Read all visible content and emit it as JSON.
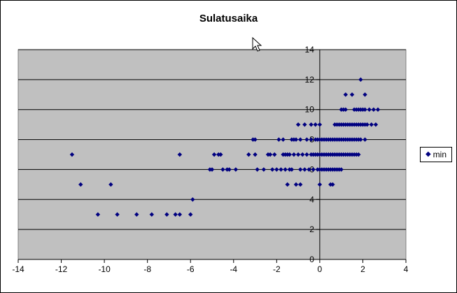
{
  "chart_data": {
    "type": "scatter",
    "title": "Sulatusaika",
    "xlabel": "",
    "ylabel": "",
    "xlim": [
      -14,
      4
    ],
    "ylim": [
      0,
      14
    ],
    "x_ticks": [
      -14,
      -12,
      -10,
      -8,
      -6,
      -4,
      -2,
      0,
      2,
      4
    ],
    "y_ticks": [
      0,
      2,
      4,
      6,
      8,
      10,
      12,
      14
    ],
    "grid": "horizontal",
    "legend_position": "right",
    "plot_background": "#C0C0C0",
    "marker": "diamond",
    "marker_color": "#000080",
    "series": [
      {
        "name": "min",
        "points": [
          [
            -11.5,
            7
          ],
          [
            -11.1,
            5
          ],
          [
            -10.3,
            3
          ],
          [
            -9.7,
            5
          ],
          [
            -9.4,
            3
          ],
          [
            -8.5,
            3
          ],
          [
            -7.8,
            3
          ],
          [
            -7.1,
            3
          ],
          [
            -6.7,
            3
          ],
          [
            -6.5,
            3
          ],
          [
            -6.5,
            7
          ],
          [
            -6.0,
            3
          ],
          [
            -5.9,
            4
          ],
          [
            -5.1,
            6
          ],
          [
            -5.0,
            6
          ],
          [
            -4.9,
            7
          ],
          [
            -4.7,
            7
          ],
          [
            -4.6,
            7
          ],
          [
            -4.5,
            6
          ],
          [
            -4.3,
            6
          ],
          [
            -4.2,
            6
          ],
          [
            -3.9,
            6
          ],
          [
            -3.3,
            7
          ],
          [
            -3.1,
            8
          ],
          [
            -3.0,
            8
          ],
          [
            -3.0,
            7
          ],
          [
            -2.9,
            6
          ],
          [
            -2.6,
            6
          ],
          [
            -2.4,
            7
          ],
          [
            -2.3,
            7
          ],
          [
            -2.2,
            6
          ],
          [
            -2.1,
            7
          ],
          [
            -2.0,
            6
          ],
          [
            -1.9,
            8
          ],
          [
            -1.8,
            6
          ],
          [
            -1.7,
            7
          ],
          [
            -1.7,
            8
          ],
          [
            -1.6,
            7
          ],
          [
            -1.6,
            6
          ],
          [
            -1.5,
            5
          ],
          [
            -1.5,
            7
          ],
          [
            -1.4,
            6
          ],
          [
            -1.4,
            7
          ],
          [
            -1.3,
            8
          ],
          [
            -1.3,
            6
          ],
          [
            -1.2,
            7
          ],
          [
            -1.2,
            8
          ],
          [
            -1.1,
            5
          ],
          [
            -1.1,
            8
          ],
          [
            -1.0,
            7
          ],
          [
            -1.0,
            9
          ],
          [
            -0.9,
            6
          ],
          [
            -0.9,
            8
          ],
          [
            -0.9,
            5
          ],
          [
            -0.8,
            7
          ],
          [
            -0.7,
            6
          ],
          [
            -0.7,
            9
          ],
          [
            -0.6,
            7
          ],
          [
            -0.6,
            8
          ],
          [
            -0.5,
            6
          ],
          [
            -0.4,
            7
          ],
          [
            -0.4,
            8
          ],
          [
            -0.4,
            9
          ],
          [
            -0.3,
            6
          ],
          [
            -0.3,
            7
          ],
          [
            -0.2,
            7
          ],
          [
            -0.2,
            8
          ],
          [
            -0.2,
            9
          ],
          [
            -0.1,
            6
          ],
          [
            -0.1,
            7
          ],
          [
            -0.1,
            8
          ],
          [
            0.0,
            6
          ],
          [
            0.0,
            7
          ],
          [
            0.0,
            8
          ],
          [
            0.0,
            9
          ],
          [
            0.0,
            5
          ],
          [
            0.1,
            6
          ],
          [
            0.1,
            7
          ],
          [
            0.1,
            8
          ],
          [
            0.2,
            6
          ],
          [
            0.2,
            7
          ],
          [
            0.2,
            8
          ],
          [
            0.3,
            6
          ],
          [
            0.3,
            7
          ],
          [
            0.3,
            8
          ],
          [
            0.4,
            6
          ],
          [
            0.4,
            7
          ],
          [
            0.4,
            8
          ],
          [
            0.5,
            7
          ],
          [
            0.5,
            5
          ],
          [
            0.5,
            8
          ],
          [
            0.5,
            6
          ],
          [
            0.6,
            5
          ],
          [
            0.6,
            7
          ],
          [
            0.6,
            8
          ],
          [
            0.6,
            6
          ],
          [
            0.7,
            9
          ],
          [
            0.7,
            8
          ],
          [
            0.7,
            6
          ],
          [
            0.7,
            7
          ],
          [
            0.8,
            9
          ],
          [
            0.8,
            8
          ],
          [
            0.8,
            7
          ],
          [
            0.8,
            6
          ],
          [
            0.9,
            9
          ],
          [
            0.9,
            8
          ],
          [
            0.9,
            7
          ],
          [
            0.9,
            6
          ],
          [
            1.0,
            10
          ],
          [
            1.0,
            9
          ],
          [
            1.0,
            8
          ],
          [
            1.0,
            7
          ],
          [
            1.0,
            6
          ],
          [
            1.1,
            10
          ],
          [
            1.1,
            9
          ],
          [
            1.1,
            8
          ],
          [
            1.1,
            7
          ],
          [
            1.2,
            11
          ],
          [
            1.2,
            10
          ],
          [
            1.2,
            9
          ],
          [
            1.2,
            8
          ],
          [
            1.2,
            7
          ],
          [
            1.3,
            9
          ],
          [
            1.3,
            8
          ],
          [
            1.3,
            7
          ],
          [
            1.4,
            9
          ],
          [
            1.4,
            8
          ],
          [
            1.4,
            7
          ],
          [
            1.5,
            11
          ],
          [
            1.5,
            9
          ],
          [
            1.5,
            8
          ],
          [
            1.5,
            7
          ],
          [
            1.6,
            10
          ],
          [
            1.6,
            9
          ],
          [
            1.6,
            8
          ],
          [
            1.6,
            7
          ],
          [
            1.7,
            10
          ],
          [
            1.7,
            9
          ],
          [
            1.7,
            8
          ],
          [
            1.7,
            7
          ],
          [
            1.8,
            10
          ],
          [
            1.8,
            9
          ],
          [
            1.8,
            8
          ],
          [
            1.8,
            7
          ],
          [
            1.9,
            12
          ],
          [
            1.9,
            10
          ],
          [
            1.9,
            9
          ],
          [
            1.9,
            8
          ],
          [
            2.0,
            10
          ],
          [
            2.0,
            9
          ],
          [
            2.1,
            11
          ],
          [
            2.1,
            10
          ],
          [
            2.1,
            9
          ],
          [
            2.1,
            8
          ],
          [
            2.2,
            9
          ],
          [
            2.3,
            10
          ],
          [
            2.4,
            9
          ],
          [
            2.5,
            10
          ],
          [
            2.6,
            9
          ],
          [
            2.7,
            10
          ]
        ]
      }
    ]
  }
}
